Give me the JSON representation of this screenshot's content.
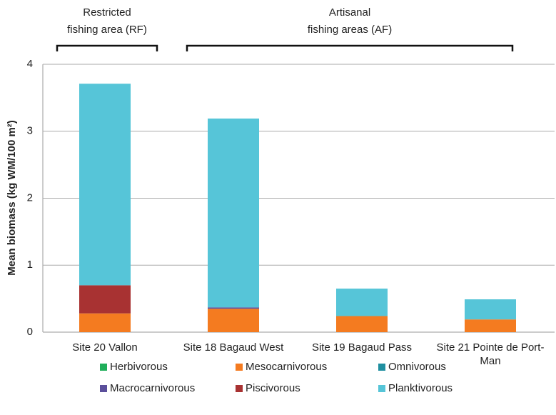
{
  "chart_data": {
    "type": "stacked_bar",
    "y_label": "Mean biomass (kg WM/100 m²)",
    "annotations": [
      {
        "lines": [
          "Restricted",
          "fishing area (RF)"
        ]
      },
      {
        "lines": [
          "Artisanal",
          "fishing areas (AF)"
        ]
      }
    ],
    "categories": [
      "Site 20 Vallon",
      "Site 18 Bagaud West",
      "Site 19 Bagaud Pass",
      "Site 21 Pointe de Port-Man"
    ],
    "series": [
      {
        "name": "Herbivorous",
        "color": "#1fae5a",
        "values": [
          0,
          0,
          0,
          0
        ]
      },
      {
        "name": "Mesocarnivorous",
        "color": "#f47b20",
        "values": [
          0.28,
          0.35,
          0.24,
          0.19
        ]
      },
      {
        "name": "Omnivorous",
        "color": "#1f8fa0",
        "values": [
          0,
          0,
          0,
          0
        ]
      },
      {
        "name": "Macrocarnivorous",
        "color": "#5b4f9b",
        "values": [
          0,
          0.02,
          0,
          0
        ]
      },
      {
        "name": "Piscivorous",
        "color": "#a83232",
        "values": [
          0.42,
          0,
          0,
          0
        ]
      },
      {
        "name": "Planktivorous",
        "color": "#56c5d8",
        "values": [
          3.01,
          2.82,
          0.41,
          0.3
        ]
      }
    ],
    "ylim": [
      0,
      4
    ],
    "yticks": [
      0,
      1,
      2,
      3,
      4
    ],
    "grid": true
  }
}
